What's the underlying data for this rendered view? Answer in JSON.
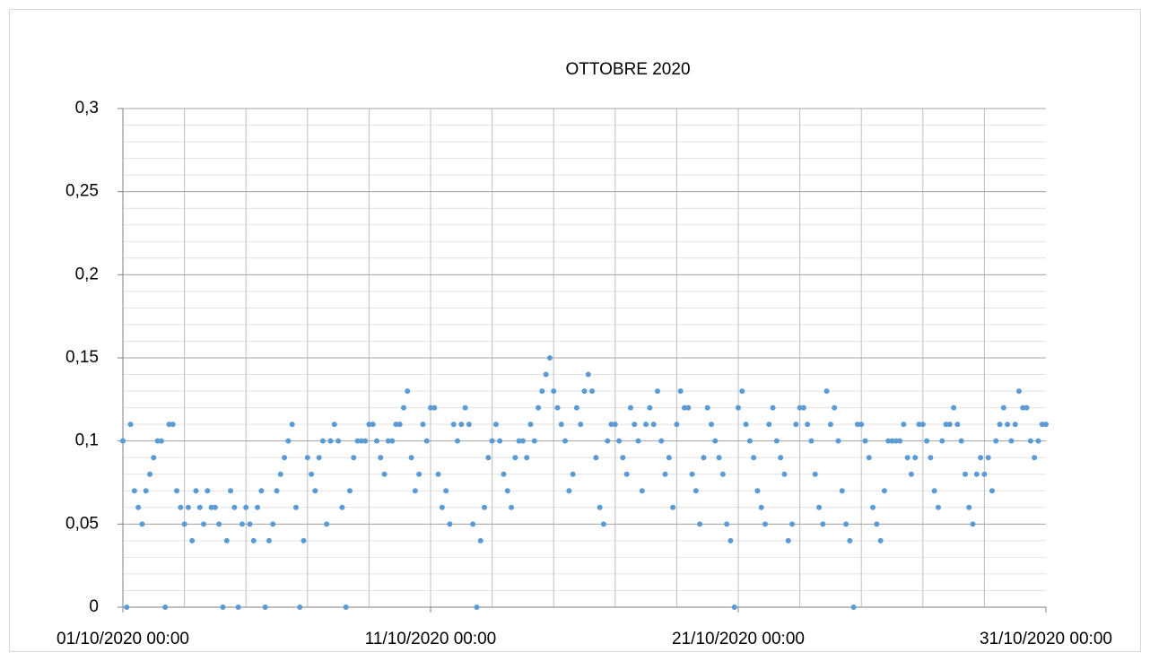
{
  "chart_data": {
    "type": "scatter",
    "title": "OTTOBRE 2020",
    "color": "#5b9bd5",
    "xlim": [
      "2020-10-01 00:00",
      "2020-10-31 00:00"
    ],
    "xticks": [
      {
        "value": "2020-10-01 00:00",
        "label": "01/10/2020 00:00"
      },
      {
        "value": "2020-10-11 00:00",
        "label": "11/10/2020 00:00"
      },
      {
        "value": "2020-10-21 00:00",
        "label": "21/10/2020 00:00"
      },
      {
        "value": "2020-10-31 00:00",
        "label": "31/10/2020 00:00"
      }
    ],
    "ylim": [
      0,
      0.3
    ],
    "yticks": [
      0,
      {
        "value": 0.05,
        "label": "0,05"
      },
      {
        "value": 0.1,
        "label": "0,1"
      },
      {
        "value": 0.15,
        "label": "0,15"
      },
      {
        "value": 0.2,
        "label": "0,2"
      },
      {
        "value": 0.25,
        "label": "0,25"
      },
      {
        "value": 0.3,
        "label": "0,3"
      }
    ],
    "grid": true,
    "xgrid_step_days": 2,
    "ygrid_minor_step": 0.01,
    "x": [
      "2020-10-01 00:00",
      "2020-10-01 03:00",
      "2020-10-01 06:00",
      "2020-10-01 09:00",
      "2020-10-01 12:00",
      "2020-10-01 15:00",
      "2020-10-01 18:00",
      "2020-10-01 21:00",
      "2020-10-02 00:00",
      "2020-10-02 03:00",
      "2020-10-02 06:00",
      "2020-10-02 09:00",
      "2020-10-02 12:00",
      "2020-10-02 15:00",
      "2020-10-02 18:00",
      "2020-10-02 21:00",
      "2020-10-03 00:00",
      "2020-10-03 03:00",
      "2020-10-03 06:00",
      "2020-10-03 09:00",
      "2020-10-03 12:00",
      "2020-10-03 15:00",
      "2020-10-03 18:00",
      "2020-10-03 21:00",
      "2020-10-04 00:00",
      "2020-10-04 03:00",
      "2020-10-04 06:00",
      "2020-10-04 09:00",
      "2020-10-04 12:00",
      "2020-10-04 15:00",
      "2020-10-04 18:00",
      "2020-10-04 21:00",
      "2020-10-05 00:00",
      "2020-10-05 03:00",
      "2020-10-05 06:00",
      "2020-10-05 09:00",
      "2020-10-05 12:00",
      "2020-10-05 15:00",
      "2020-10-05 18:00",
      "2020-10-05 21:00",
      "2020-10-06 00:00",
      "2020-10-06 03:00",
      "2020-10-06 06:00",
      "2020-10-06 09:00",
      "2020-10-06 12:00",
      "2020-10-06 15:00",
      "2020-10-06 18:00",
      "2020-10-06 21:00",
      "2020-10-07 00:00",
      "2020-10-07 03:00",
      "2020-10-07 06:00",
      "2020-10-07 09:00",
      "2020-10-07 12:00",
      "2020-10-07 15:00",
      "2020-10-07 18:00",
      "2020-10-07 21:00",
      "2020-10-08 00:00",
      "2020-10-08 03:00",
      "2020-10-08 06:00",
      "2020-10-08 09:00",
      "2020-10-08 12:00",
      "2020-10-08 15:00",
      "2020-10-08 18:00",
      "2020-10-08 21:00",
      "2020-10-09 00:00",
      "2020-10-09 03:00",
      "2020-10-09 06:00",
      "2020-10-09 09:00",
      "2020-10-09 12:00",
      "2020-10-09 15:00",
      "2020-10-09 18:00",
      "2020-10-09 21:00",
      "2020-10-10 00:00",
      "2020-10-10 03:00",
      "2020-10-10 06:00",
      "2020-10-10 09:00",
      "2020-10-10 12:00",
      "2020-10-10 15:00",
      "2020-10-10 18:00",
      "2020-10-10 21:00",
      "2020-10-11 00:00",
      "2020-10-11 03:00",
      "2020-10-11 06:00",
      "2020-10-11 09:00",
      "2020-10-11 12:00",
      "2020-10-11 15:00",
      "2020-10-11 18:00",
      "2020-10-11 21:00",
      "2020-10-12 00:00",
      "2020-10-12 03:00",
      "2020-10-12 06:00",
      "2020-10-12 09:00",
      "2020-10-12 12:00",
      "2020-10-12 15:00",
      "2020-10-12 18:00",
      "2020-10-12 21:00",
      "2020-10-13 00:00",
      "2020-10-13 03:00",
      "2020-10-13 06:00",
      "2020-10-13 09:00",
      "2020-10-13 12:00",
      "2020-10-13 15:00",
      "2020-10-13 18:00",
      "2020-10-13 21:00",
      "2020-10-14 00:00",
      "2020-10-14 03:00",
      "2020-10-14 06:00",
      "2020-10-14 09:00",
      "2020-10-14 12:00",
      "2020-10-14 15:00",
      "2020-10-14 18:00",
      "2020-10-14 21:00",
      "2020-10-15 00:00",
      "2020-10-15 03:00",
      "2020-10-15 06:00",
      "2020-10-15 09:00",
      "2020-10-15 12:00",
      "2020-10-15 15:00",
      "2020-10-15 18:00",
      "2020-10-15 21:00",
      "2020-10-16 00:00",
      "2020-10-16 03:00",
      "2020-10-16 06:00",
      "2020-10-16 09:00",
      "2020-10-16 12:00",
      "2020-10-16 15:00",
      "2020-10-16 18:00",
      "2020-10-16 21:00",
      "2020-10-17 00:00",
      "2020-10-17 03:00",
      "2020-10-17 06:00",
      "2020-10-17 09:00",
      "2020-10-17 12:00",
      "2020-10-17 15:00",
      "2020-10-17 18:00",
      "2020-10-17 21:00",
      "2020-10-18 00:00",
      "2020-10-18 03:00",
      "2020-10-18 06:00",
      "2020-10-18 09:00",
      "2020-10-18 12:00",
      "2020-10-18 15:00",
      "2020-10-18 18:00",
      "2020-10-18 21:00",
      "2020-10-19 00:00",
      "2020-10-19 03:00",
      "2020-10-19 06:00",
      "2020-10-19 09:00",
      "2020-10-19 12:00",
      "2020-10-19 15:00",
      "2020-10-19 18:00",
      "2020-10-19 21:00",
      "2020-10-20 00:00",
      "2020-10-20 03:00",
      "2020-10-20 06:00",
      "2020-10-20 09:00",
      "2020-10-20 12:00",
      "2020-10-20 15:00",
      "2020-10-20 18:00",
      "2020-10-20 21:00",
      "2020-10-21 00:00",
      "2020-10-21 03:00",
      "2020-10-21 06:00",
      "2020-10-21 09:00",
      "2020-10-21 12:00",
      "2020-10-21 15:00",
      "2020-10-21 18:00",
      "2020-10-21 21:00",
      "2020-10-22 00:00",
      "2020-10-22 03:00",
      "2020-10-22 06:00",
      "2020-10-22 09:00",
      "2020-10-22 12:00",
      "2020-10-22 15:00",
      "2020-10-22 18:00",
      "2020-10-22 21:00",
      "2020-10-23 00:00",
      "2020-10-23 03:00",
      "2020-10-23 06:00",
      "2020-10-23 09:00",
      "2020-10-23 12:00",
      "2020-10-23 15:00",
      "2020-10-23 18:00",
      "2020-10-23 21:00",
      "2020-10-24 00:00",
      "2020-10-24 03:00",
      "2020-10-24 06:00",
      "2020-10-24 09:00",
      "2020-10-24 12:00",
      "2020-10-24 15:00",
      "2020-10-24 18:00",
      "2020-10-24 21:00",
      "2020-10-25 00:00",
      "2020-10-25 03:00",
      "2020-10-25 06:00",
      "2020-10-25 09:00",
      "2020-10-25 12:00",
      "2020-10-25 15:00",
      "2020-10-25 18:00",
      "2020-10-25 21:00",
      "2020-10-26 00:00",
      "2020-10-26 03:00",
      "2020-10-26 06:00",
      "2020-10-26 09:00",
      "2020-10-26 12:00",
      "2020-10-26 15:00",
      "2020-10-26 18:00",
      "2020-10-26 21:00",
      "2020-10-27 00:00",
      "2020-10-27 03:00",
      "2020-10-27 06:00",
      "2020-10-27 09:00",
      "2020-10-27 12:00",
      "2020-10-27 15:00",
      "2020-10-27 18:00",
      "2020-10-27 21:00",
      "2020-10-28 00:00",
      "2020-10-28 03:00",
      "2020-10-28 06:00",
      "2020-10-28 09:00",
      "2020-10-28 12:00",
      "2020-10-28 15:00",
      "2020-10-28 18:00",
      "2020-10-28 21:00",
      "2020-10-29 00:00",
      "2020-10-29 03:00",
      "2020-10-29 06:00",
      "2020-10-29 09:00",
      "2020-10-29 12:00",
      "2020-10-29 15:00",
      "2020-10-29 18:00",
      "2020-10-29 21:00",
      "2020-10-30 00:00",
      "2020-10-30 03:00",
      "2020-10-30 06:00",
      "2020-10-30 09:00",
      "2020-10-30 12:00",
      "2020-10-30 15:00",
      "2020-10-30 18:00",
      "2020-10-30 21:00",
      "2020-10-31 00:00"
    ],
    "values": [
      0.1,
      0,
      0.11,
      0.07,
      0.06,
      0.05,
      0.07,
      0.08,
      0.09,
      0.1,
      0.1,
      0,
      0.11,
      0.11,
      0.07,
      0.06,
      0.05,
      0.06,
      0.04,
      0.07,
      0.06,
      0.05,
      0.07,
      0.06,
      0.06,
      0.05,
      0,
      0.04,
      0.07,
      0.06,
      0,
      0.05,
      0.06,
      0.05,
      0.04,
      0.06,
      0.07,
      0,
      0.04,
      0.05,
      0.07,
      0.08,
      0.09,
      0.1,
      0.11,
      0.06,
      0,
      0.04,
      0.09,
      0.08,
      0.07,
      0.09,
      0.1,
      0.05,
      0.1,
      0.11,
      0.1,
      0.06,
      0,
      0.07,
      0.09,
      0.1,
      0.1,
      0.1,
      0.11,
      0.11,
      0.1,
      0.09,
      0.08,
      0.1,
      0.1,
      0.11,
      0.11,
      0.12,
      0.13,
      0.09,
      0.07,
      0.08,
      0.11,
      0.1,
      0.12,
      0.12,
      0.08,
      0.06,
      0.07,
      0.05,
      0.11,
      0.1,
      0.11,
      0.12,
      0.11,
      0.05,
      0,
      0.04,
      0.06,
      0.09,
      0.1,
      0.11,
      0.1,
      0.08,
      0.07,
      0.06,
      0.09,
      0.1,
      0.1,
      0.09,
      0.11,
      0.1,
      0.12,
      0.13,
      0.14,
      0.15,
      0.13,
      0.12,
      0.11,
      0.1,
      0.07,
      0.08,
      0.12,
      0.11,
      0.13,
      0.14,
      0.13,
      0.09,
      0.06,
      0.05,
      0.1,
      0.11,
      0.11,
      0.1,
      0.09,
      0.08,
      0.12,
      0.11,
      0.1,
      0.07,
      0.11,
      0.12,
      0.11,
      0.13,
      0.1,
      0.08,
      0.09,
      0.06,
      0.11,
      0.13,
      0.12,
      0.12,
      0.08,
      0.07,
      0.05,
      0.09,
      0.12,
      0.11,
      0.1,
      0.09,
      0.08,
      0.05,
      0.04,
      0,
      0.12,
      0.13,
      0.11,
      0.1,
      0.09,
      0.07,
      0.06,
      0.05,
      0.11,
      0.12,
      0.1,
      0.09,
      0.08,
      0.04,
      0.05,
      0.11,
      0.12,
      0.12,
      0.11,
      0.1,
      0.08,
      0.06,
      0.05,
      0.13,
      0.11,
      0.12,
      0.1,
      0.07,
      0.05,
      0.04,
      0,
      0.11,
      0.11,
      0.1,
      0.09,
      0.06,
      0.05,
      0.04,
      0.07,
      0.1,
      0.1,
      0.1,
      0.1,
      0.11,
      0.09,
      0.08,
      0.09,
      0.11,
      0.11,
      0.1,
      0.09,
      0.07,
      0.06,
      0.1,
      0.11,
      0.11,
      0.12,
      0.11,
      0.1,
      0.08,
      0.06,
      0.05,
      0.08,
      0.09,
      0.08,
      0.09,
      0.07,
      0.1,
      0.11,
      0.12,
      0.11,
      0.1,
      0.11,
      0.13,
      0.12,
      0.12,
      0.1,
      0.09,
      0.1,
      0.11,
      0.11
    ]
  }
}
